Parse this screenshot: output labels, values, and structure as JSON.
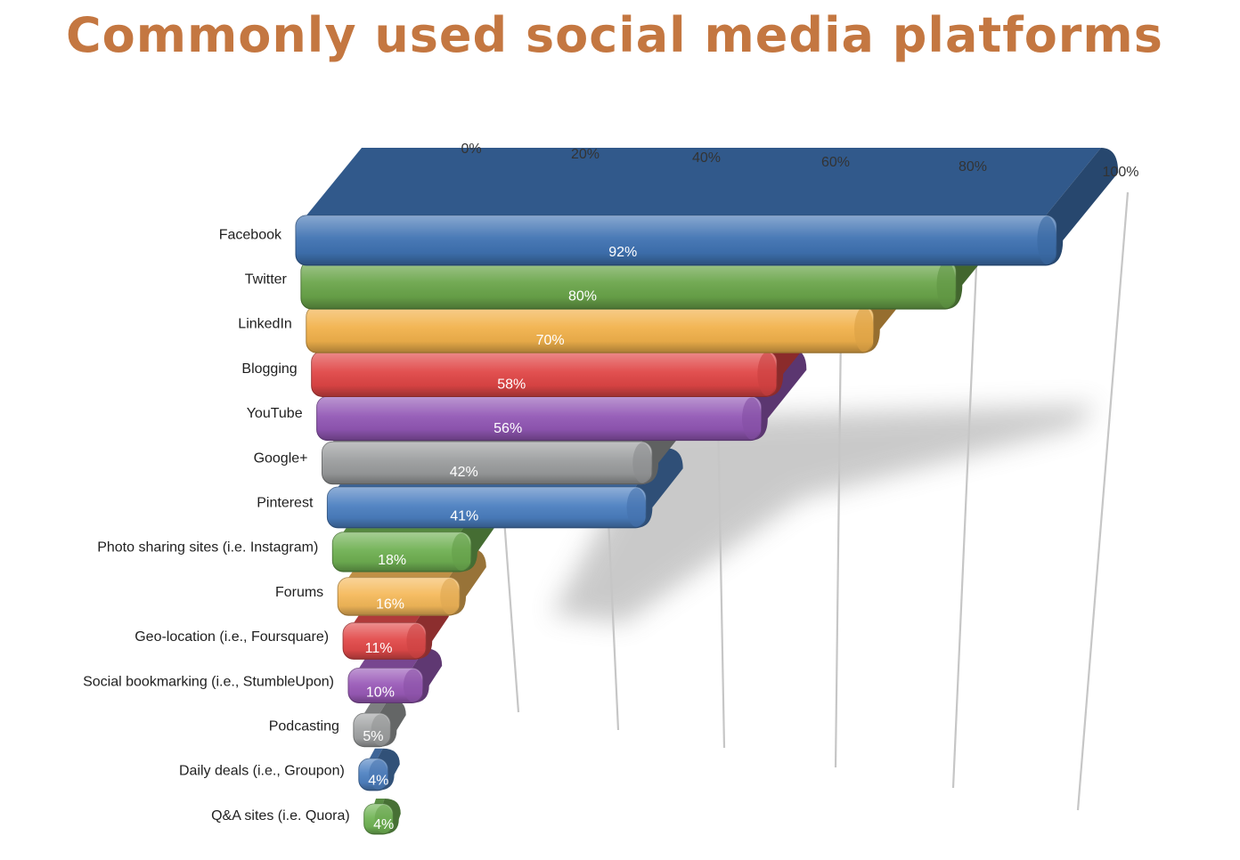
{
  "title": "Commonly used social media platforms",
  "chart_data": {
    "type": "bar",
    "orientation": "horizontal",
    "title": "Commonly used social media platforms",
    "xlabel": "",
    "ylabel": "",
    "xlim": [
      0,
      100
    ],
    "ticks": [
      0,
      20,
      40,
      60,
      80,
      100
    ],
    "tick_labels": [
      "0%",
      "20%",
      "40%",
      "60%",
      "80%",
      "100%"
    ],
    "categories": [
      "Facebook",
      "Twitter",
      "LinkedIn",
      "Blogging",
      "YouTube",
      "Google+",
      "Pinterest",
      "Photo sharing sites (i.e. Instagram)",
      "Forums",
      "Geo-location (i.e., Foursquare)",
      "Social bookmarking (i.e., StumbleUpon)",
      "Podcasting",
      "Daily deals (i.e., Groupon)",
      "Q&A sites (i.e. Quora)"
    ],
    "values": [
      92,
      80,
      70,
      58,
      56,
      42,
      41,
      18,
      16,
      11,
      10,
      5,
      4,
      4
    ],
    "value_labels": [
      "92%",
      "80%",
      "70%",
      "58%",
      "56%",
      "42%",
      "41%",
      "18%",
      "16%",
      "11%",
      "10%",
      "5%",
      "4%",
      "4%"
    ],
    "colors": [
      "#3f72b2",
      "#6aa54a",
      "#f2b24c",
      "#e04646",
      "#9257b5",
      "#9a9c9d",
      "#4b7fc0",
      "#6fb052",
      "#f5b95a",
      "#e24a4a",
      "#9a5ab8",
      "#a2a4a5",
      "#4f82c2",
      "#72b556"
    ],
    "grid": true,
    "legend": "none"
  }
}
